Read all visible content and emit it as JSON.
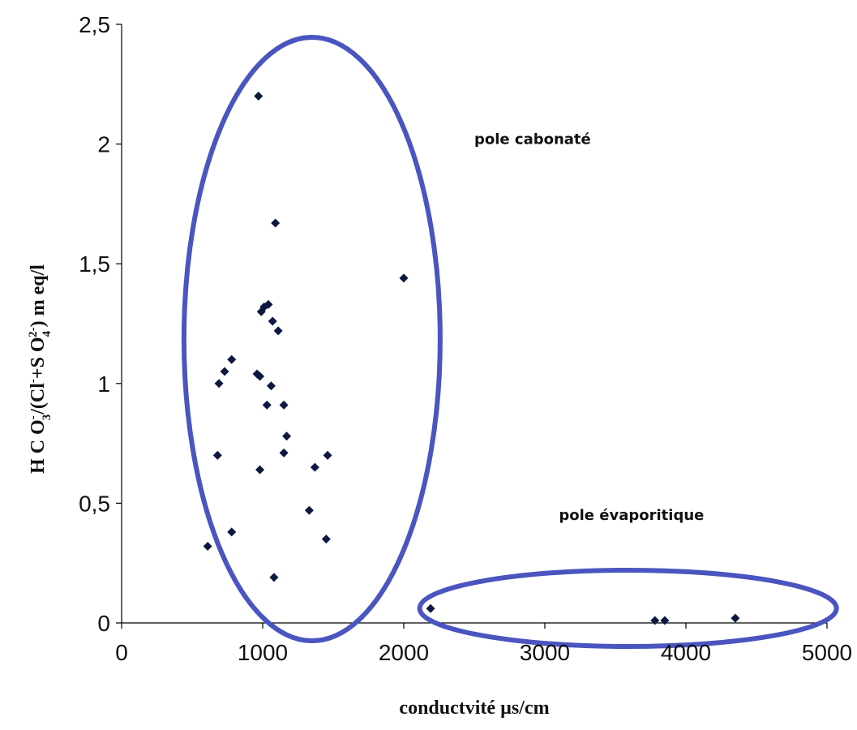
{
  "chart_data": {
    "type": "scatter",
    "xlabel": "conductvité µs/cm",
    "ylabel": {
      "prefix": "H C O",
      "sup1": "-",
      "sub1": "3",
      "mid": "/(Cl",
      "sup2": "-",
      "mid2": "+S O",
      "sub2": "4",
      "sup3": "2-",
      "suffix": ") m eq/l"
    },
    "xlim": [
      0,
      5000
    ],
    "ylim": [
      0,
      2.5
    ],
    "x_ticks": [
      "0",
      "1000",
      "2000",
      "3000",
      "4000",
      "5000"
    ],
    "y_ticks": [
      "0",
      "0,5",
      "1",
      "1,5",
      "2",
      "2,5"
    ],
    "marker_color": "#0d1840",
    "ellipse_color": "#4a55c0",
    "grid": false,
    "annotations": [
      {
        "text": "pole cabonaté",
        "x": 2500,
        "y": 2.0
      },
      {
        "text": "pole évaporitique",
        "x": 3100,
        "y": 0.43
      }
    ],
    "groups": [
      {
        "label": "pole cabonaté",
        "cx": 1350,
        "cy": 1.2,
        "rx": 1.8,
        "ry": 1.24,
        "units": "rx in thousands of µs/cm ×0.1"
      },
      {
        "label": "pole évaporitique",
        "cx": 3590,
        "cy": 0.06,
        "rx": 1.43,
        "ry": 0.14,
        "units": "rx in thousands of µs/cm ×0.1"
      }
    ],
    "points": [
      {
        "x": 970,
        "y": 2.2
      },
      {
        "x": 1090,
        "y": 1.67
      },
      {
        "x": 2000,
        "y": 1.44
      },
      {
        "x": 990,
        "y": 1.3
      },
      {
        "x": 1010,
        "y": 1.32
      },
      {
        "x": 1040,
        "y": 1.33
      },
      {
        "x": 1070,
        "y": 1.26
      },
      {
        "x": 1110,
        "y": 1.22
      },
      {
        "x": 780,
        "y": 1.1
      },
      {
        "x": 730,
        "y": 1.05
      },
      {
        "x": 690,
        "y": 1.0
      },
      {
        "x": 960,
        "y": 1.04
      },
      {
        "x": 980,
        "y": 1.03
      },
      {
        "x": 1060,
        "y": 0.99
      },
      {
        "x": 1030,
        "y": 0.91
      },
      {
        "x": 1150,
        "y": 0.91
      },
      {
        "x": 1170,
        "y": 0.78
      },
      {
        "x": 1150,
        "y": 0.71
      },
      {
        "x": 680,
        "y": 0.7
      },
      {
        "x": 1460,
        "y": 0.7
      },
      {
        "x": 980,
        "y": 0.64
      },
      {
        "x": 1370,
        "y": 0.65
      },
      {
        "x": 1330,
        "y": 0.47
      },
      {
        "x": 780,
        "y": 0.38
      },
      {
        "x": 1450,
        "y": 0.35
      },
      {
        "x": 610,
        "y": 0.32
      },
      {
        "x": 1080,
        "y": 0.19
      },
      {
        "x": 2190,
        "y": 0.06
      },
      {
        "x": 3780,
        "y": 0.01
      },
      {
        "x": 3850,
        "y": 0.01
      },
      {
        "x": 4350,
        "y": 0.02
      }
    ]
  }
}
